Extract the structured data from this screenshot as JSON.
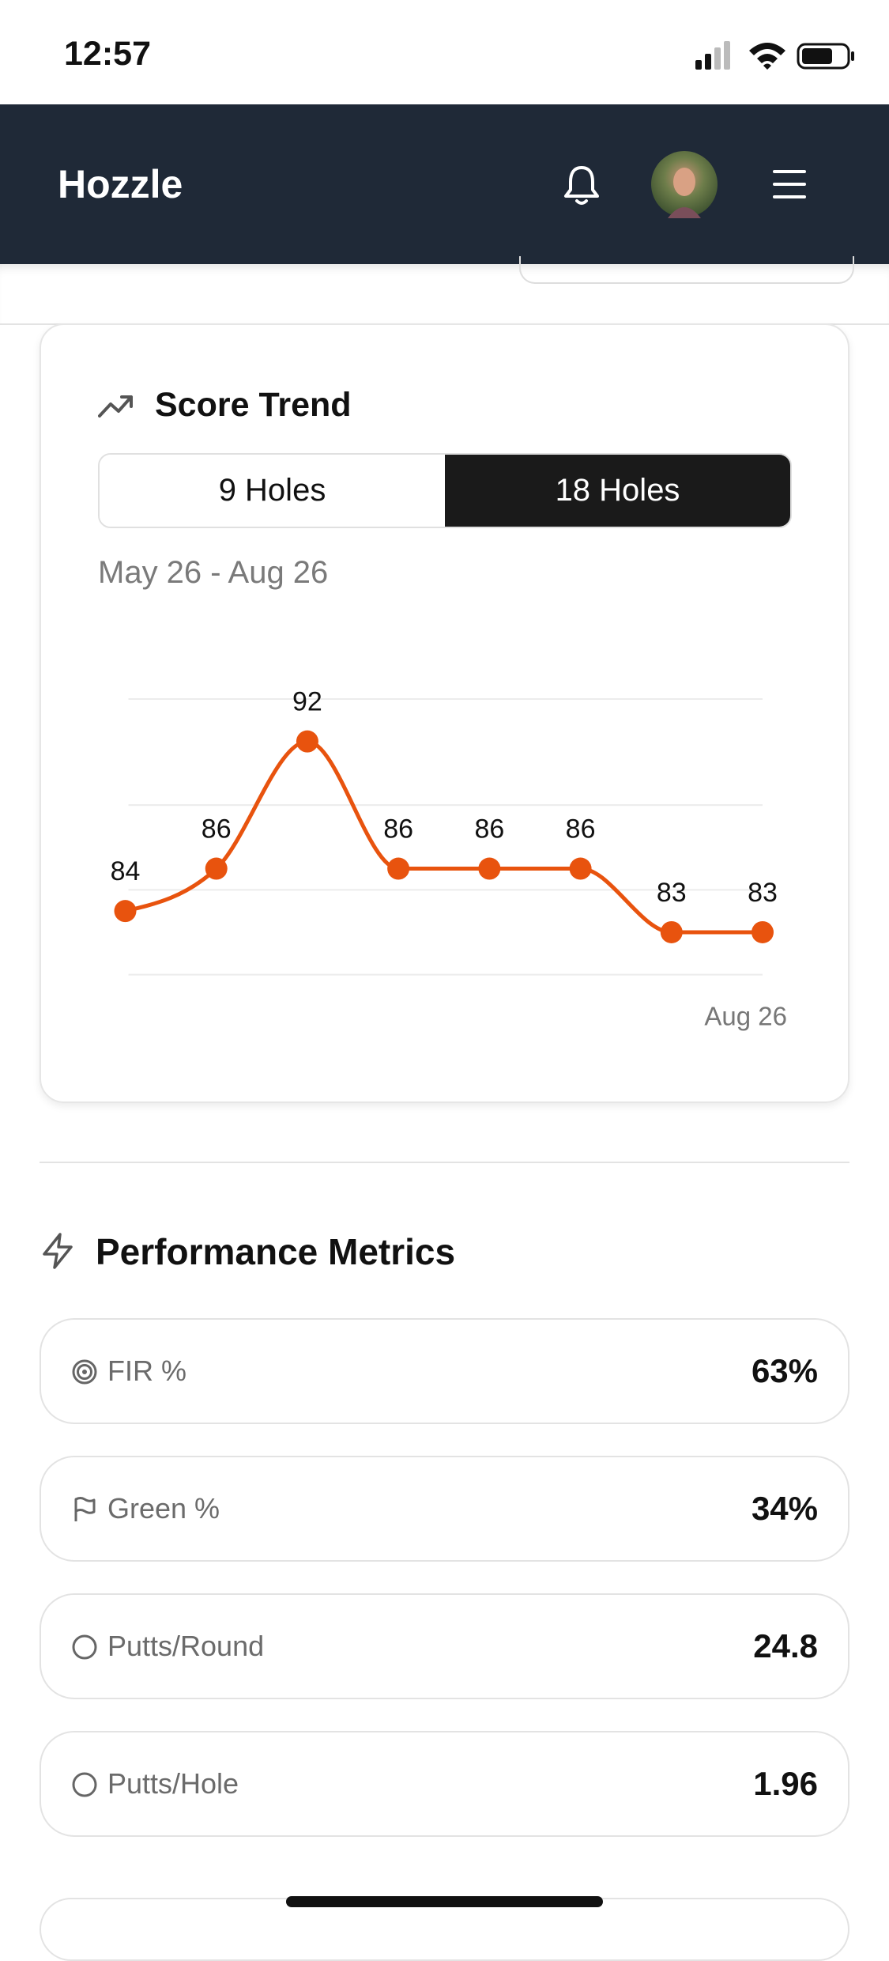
{
  "status_bar": {
    "time": "12:57"
  },
  "header": {
    "title": "Hozzle"
  },
  "tabs": {
    "options": [
      "9 Holes",
      "18 Holes"
    ],
    "selected": 1
  },
  "chart_data": {
    "type": "line",
    "title": "Score Trend",
    "subtitle": "May 26 - Aug 26",
    "categories": [
      null,
      null,
      null,
      null,
      null,
      null,
      null,
      "Aug 26"
    ],
    "values": [
      84,
      86,
      92,
      86,
      86,
      86,
      83,
      83
    ],
    "color": "#e8530e",
    "ylim": [
      81,
      94
    ],
    "yticks": [
      81,
      85,
      89,
      94
    ],
    "grid": true
  },
  "performance": {
    "title": "Performance Metrics",
    "metrics": [
      {
        "label": "FIR %",
        "value": "63%"
      },
      {
        "label": "Green %",
        "value": "34%"
      },
      {
        "label": "Putts/Round",
        "value": "24.8"
      },
      {
        "label": "Putts/Hole",
        "value": "1.96"
      }
    ]
  }
}
